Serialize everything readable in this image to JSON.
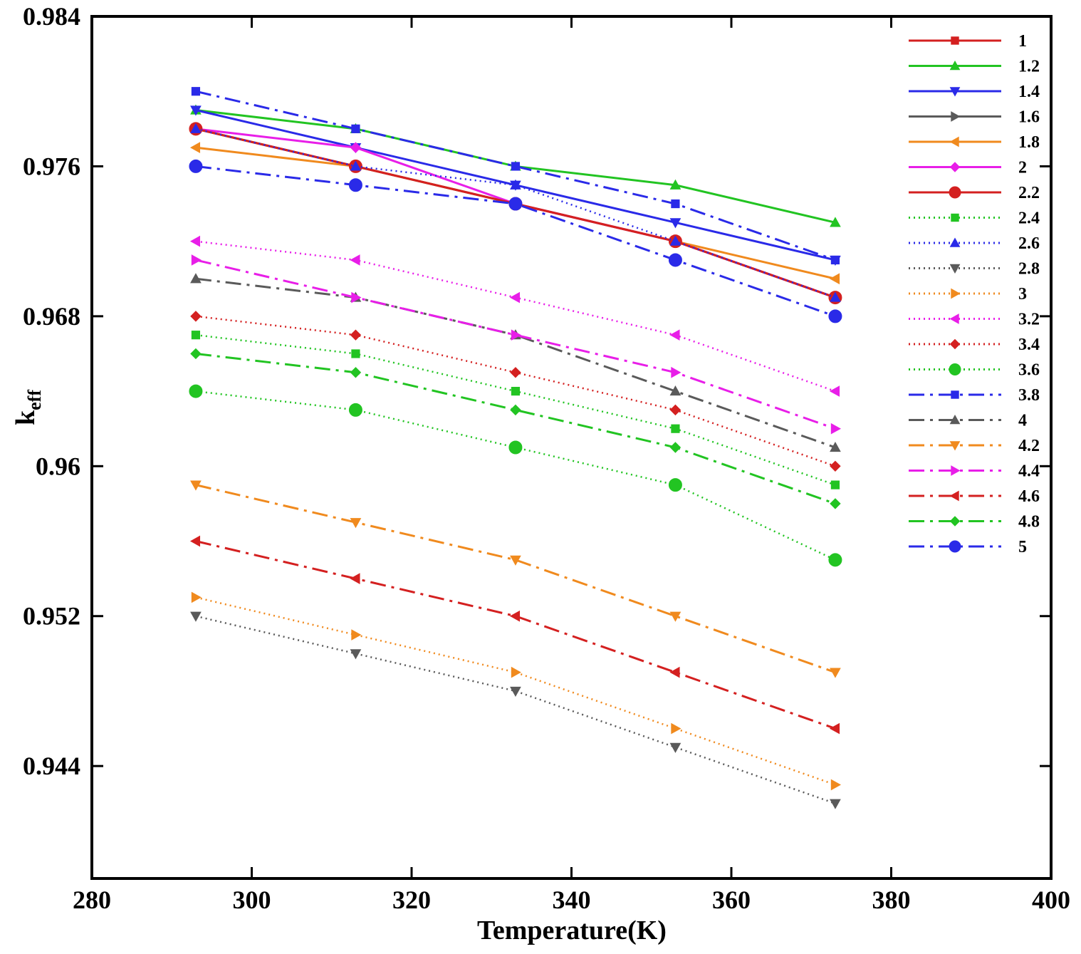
{
  "chart_data": {
    "type": "line",
    "title": "",
    "xlabel": "Temperature(K)",
    "ylabel": "k",
    "ylabel_sub": "eff",
    "xlim": [
      280,
      400
    ],
    "ylim": [
      0.938,
      0.984
    ],
    "xticks": [
      280,
      300,
      320,
      340,
      360,
      380,
      400
    ],
    "xtick_labels": [
      "280",
      "300",
      "320",
      "340",
      "360",
      "380",
      "400"
    ],
    "yticks": [
      0.944,
      0.952,
      0.96,
      0.968,
      0.976,
      0.984
    ],
    "ytick_labels": [
      "0.944",
      "0.952",
      "0.96",
      "0.968",
      "0.976",
      "0.984"
    ],
    "grid": false,
    "legend_position": "top-right",
    "x": [
      293,
      313,
      333,
      353,
      373
    ],
    "series": [
      {
        "name": "1",
        "color": "#d42020",
        "dash": "solid",
        "marker": "square",
        "values": [
          0.978,
          0.976,
          0.974,
          0.972,
          0.969
        ]
      },
      {
        "name": "1.2",
        "color": "#22c422",
        "dash": "solid",
        "marker": "triangle-up",
        "values": [
          0.979,
          0.978,
          0.976,
          0.975,
          0.973
        ]
      },
      {
        "name": "1.4",
        "color": "#2a2ae8",
        "dash": "solid",
        "marker": "triangle-down",
        "values": [
          0.979,
          0.977,
          0.975,
          0.973,
          0.971
        ]
      },
      {
        "name": "1.6",
        "color": "#5a5a5a",
        "dash": "solid",
        "marker": "triangle-right",
        "values": [
          0.978,
          0.976,
          0.974,
          0.972,
          0.969
        ]
      },
      {
        "name": "1.8",
        "color": "#f08a1e",
        "dash": "solid",
        "marker": "triangle-left",
        "values": [
          0.977,
          0.976,
          0.974,
          0.972,
          0.97
        ]
      },
      {
        "name": "2",
        "color": "#e81ee8",
        "dash": "solid",
        "marker": "diamond",
        "values": [
          0.978,
          0.977,
          0.974,
          0.972,
          0.969
        ]
      },
      {
        "name": "2.2",
        "color": "#d42020",
        "dash": "solid",
        "marker": "circle",
        "values": [
          0.978,
          0.976,
          0.974,
          0.972,
          0.969
        ]
      },
      {
        "name": "2.4",
        "color": "#22c422",
        "dash": "dotted",
        "marker": "square",
        "values": [
          0.967,
          0.966,
          0.964,
          0.962,
          0.959
        ]
      },
      {
        "name": "2.6",
        "color": "#2a2ae8",
        "dash": "dotted",
        "marker": "triangle-up",
        "values": [
          0.978,
          0.976,
          0.975,
          0.972,
          0.969
        ]
      },
      {
        "name": "2.8",
        "color": "#5a5a5a",
        "dash": "dotted",
        "marker": "triangle-down",
        "values": [
          0.952,
          0.95,
          0.948,
          0.945,
          0.942
        ]
      },
      {
        "name": "3",
        "color": "#f08a1e",
        "dash": "dotted",
        "marker": "triangle-right",
        "values": [
          0.953,
          0.951,
          0.949,
          0.946,
          0.943
        ]
      },
      {
        "name": "3.2",
        "color": "#e81ee8",
        "dash": "dotted",
        "marker": "triangle-left",
        "values": [
          0.972,
          0.971,
          0.969,
          0.967,
          0.964
        ]
      },
      {
        "name": "3.4",
        "color": "#d42020",
        "dash": "dotted",
        "marker": "diamond",
        "values": [
          0.968,
          0.967,
          0.965,
          0.963,
          0.96
        ]
      },
      {
        "name": "3.6",
        "color": "#22c422",
        "dash": "dotted",
        "marker": "circle",
        "values": [
          0.964,
          0.963,
          0.961,
          0.959,
          0.955
        ]
      },
      {
        "name": "3.8",
        "color": "#2a2ae8",
        "dash": "dashdot",
        "marker": "square",
        "values": [
          0.98,
          0.978,
          0.976,
          0.974,
          0.971
        ]
      },
      {
        "name": "4",
        "color": "#5a5a5a",
        "dash": "dashdot",
        "marker": "triangle-up",
        "values": [
          0.97,
          0.969,
          0.967,
          0.964,
          0.961
        ]
      },
      {
        "name": "4.2",
        "color": "#f08a1e",
        "dash": "dashdot",
        "marker": "triangle-down",
        "values": [
          0.959,
          0.957,
          0.955,
          0.952,
          0.949
        ]
      },
      {
        "name": "4.4",
        "color": "#e81ee8",
        "dash": "dashdot",
        "marker": "triangle-right",
        "values": [
          0.971,
          0.969,
          0.967,
          0.965,
          0.962
        ]
      },
      {
        "name": "4.6",
        "color": "#d42020",
        "dash": "dashdot",
        "marker": "triangle-left",
        "values": [
          0.956,
          0.954,
          0.952,
          0.949,
          0.946
        ]
      },
      {
        "name": "4.8",
        "color": "#22c422",
        "dash": "dashdot",
        "marker": "diamond",
        "values": [
          0.966,
          0.965,
          0.963,
          0.961,
          0.958
        ]
      },
      {
        "name": "5",
        "color": "#2a2ae8",
        "dash": "dashdot",
        "marker": "circle",
        "values": [
          0.976,
          0.975,
          0.974,
          0.971,
          0.968
        ]
      }
    ]
  }
}
